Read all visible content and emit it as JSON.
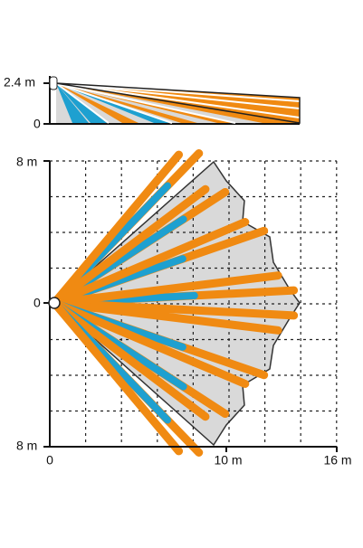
{
  "side_view": {
    "y_labels": [
      "2.4 m",
      "0"
    ]
  },
  "top_view": {
    "y_labels": [
      "8 m",
      "0",
      "8 m"
    ],
    "x_labels": [
      "0",
      "10 m",
      "16 m"
    ]
  }
}
